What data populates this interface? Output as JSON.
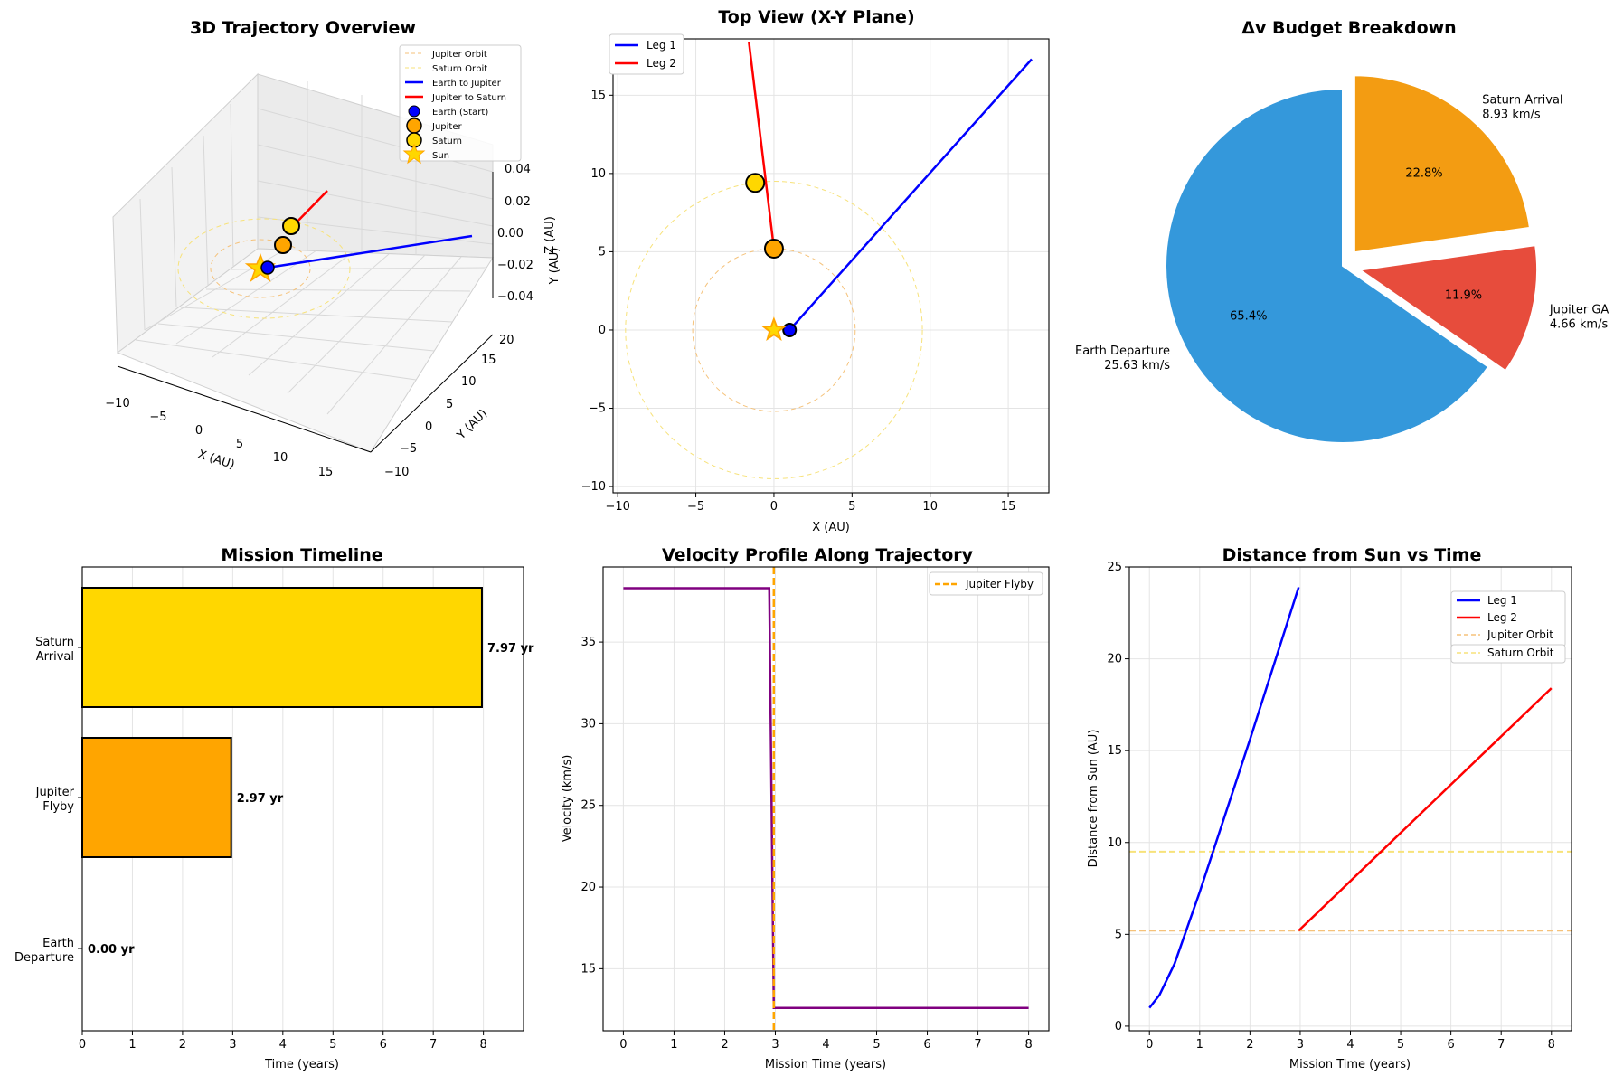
{
  "chart_data": [
    {
      "type": "scatter",
      "title": "3D Trajectory Overview",
      "xlabel": "X (AU)",
      "ylabel": "Y (AU)",
      "zlabel": "Z (AU)",
      "xticks": [
        "−10",
        "−5",
        "0",
        "5",
        "10",
        "15"
      ],
      "yticks": [
        "−10",
        "−5",
        "0",
        "5",
        "10",
        "15",
        "20"
      ],
      "zticks": [
        "−0.04",
        "−0.02",
        "0.00",
        "0.02",
        "0.04"
      ],
      "legend": [
        "Jupiter Orbit",
        "Saturn Orbit",
        "Earth to Jupiter",
        "Jupiter to Saturn",
        "Earth (Start)",
        "Jupiter",
        "Saturn",
        "Sun"
      ],
      "colors": {
        "jupiter_orbit": "#f5c27a",
        "saturn_orbit": "#f7e27a",
        "leg1": "#0000ff",
        "leg2": "#ff0000",
        "earth": "#0000ff",
        "jupiter": "#ffa500",
        "saturn": "#ffd700",
        "sun": "#ffd700"
      }
    },
    {
      "type": "line",
      "title": "Top View (X-Y Plane)",
      "xlabel": "X (AU)",
      "ylabel": "Y (AU)",
      "xlim": [
        -10.3,
        17.6
      ],
      "ylim": [
        -10.4,
        18.6
      ],
      "xticks": [
        -10,
        -5,
        0,
        5,
        10,
        15
      ],
      "yticks": [
        -10,
        -5,
        0,
        5,
        10,
        15
      ],
      "tick_labels_x": [
        "−10",
        "−5",
        "0",
        "5",
        "10",
        "15"
      ],
      "tick_labels_y": [
        "−10",
        "−5",
        "0",
        "5",
        "10",
        "15"
      ],
      "series": [
        {
          "name": "Leg 1",
          "color": "#0000ff",
          "points": [
            [
              1.0,
              0.0
            ],
            [
              16.5,
              17.3
            ]
          ]
        },
        {
          "name": "Leg 2",
          "color": "#ff0000",
          "points": [
            [
              0.0,
              5.2
            ],
            [
              -1.6,
              18.4
            ]
          ]
        }
      ],
      "markers": [
        {
          "name": "Earth",
          "x": 1.0,
          "y": 0.0,
          "color": "#0000ff"
        },
        {
          "name": "Jupiter",
          "x": 0.0,
          "y": 5.2,
          "color": "#ffa500"
        },
        {
          "name": "Saturn",
          "x": -1.2,
          "y": 9.4,
          "color": "#ffd700"
        },
        {
          "name": "Sun",
          "x": 0.0,
          "y": 0.0,
          "color": "#ffd700"
        }
      ],
      "orbits": [
        {
          "name": "Jupiter Orbit",
          "r": 5.2
        },
        {
          "name": "Saturn Orbit",
          "r": 9.5
        }
      ]
    },
    {
      "type": "pie",
      "title": "Δv Budget Breakdown",
      "slices": [
        {
          "label": "Earth Departure",
          "value_label": "25.63 km/s",
          "value": 25.63,
          "percent": "65.4%",
          "color": "#3498db"
        },
        {
          "label": "Jupiter GA",
          "value_label": "4.66 km/s",
          "value": 4.66,
          "percent": "11.9%",
          "color": "#e74c3c"
        },
        {
          "label": "Saturn Arrival",
          "value_label": "8.93 km/s",
          "value": 8.93,
          "percent": "22.8%",
          "color": "#f39c12"
        }
      ]
    },
    {
      "type": "bar",
      "title": "Mission Timeline",
      "xlabel": "Time (years)",
      "xlim": [
        0,
        8.8
      ],
      "xticks": [
        0,
        1,
        2,
        3,
        4,
        5,
        6,
        7,
        8
      ],
      "categories": [
        {
          "line1": "Saturn",
          "line2": "Arrival"
        },
        {
          "line1": "Jupiter",
          "line2": "Flyby"
        },
        {
          "line1": "Earth",
          "line2": "Departure"
        }
      ],
      "values": [
        7.97,
        2.97,
        0.0
      ],
      "value_labels": [
        "7.97 yr",
        "2.97 yr",
        "0.00 yr"
      ],
      "colors": [
        "#ffd700",
        "#ffa500",
        "#1f77b4"
      ]
    },
    {
      "type": "line",
      "title": "Velocity Profile Along Trajectory",
      "xlabel": "Mission Time (years)",
      "ylabel": "Velocity (km/s)",
      "xlim": [
        -0.4,
        8.4
      ],
      "ylim": [
        11.2,
        39.6
      ],
      "xticks": [
        0,
        1,
        2,
        3,
        4,
        5,
        6,
        7,
        8
      ],
      "yticks": [
        15,
        20,
        25,
        30,
        35
      ],
      "series": [
        {
          "name": "Velocity",
          "color": "#800080",
          "points": [
            [
              0,
              38.3
            ],
            [
              2.88,
              38.3
            ],
            [
              2.97,
              12.6
            ],
            [
              8.0,
              12.6
            ]
          ]
        }
      ],
      "vline": {
        "x": 2.97,
        "label": "Jupiter Flyby",
        "color": "#ffa500"
      }
    },
    {
      "type": "line",
      "title": "Distance from Sun vs Time",
      "xlabel": "Mission Time (years)",
      "ylabel": "Distance from Sun (AU)",
      "xlim": [
        -0.4,
        8.4
      ],
      "ylim": [
        -0.25,
        25
      ],
      "xticks": [
        0,
        1,
        2,
        3,
        4,
        5,
        6,
        7,
        8
      ],
      "yticks": [
        0,
        5,
        10,
        15,
        20,
        25
      ],
      "series": [
        {
          "name": "Leg 1",
          "color": "#0000ff",
          "points": [
            [
              0,
              1.0
            ],
            [
              0.2,
              1.7
            ],
            [
              0.5,
              3.4
            ],
            [
              1.0,
              7.3
            ],
            [
              2.0,
              15.6
            ],
            [
              2.97,
              23.9
            ]
          ]
        },
        {
          "name": "Leg 2",
          "color": "#ff0000",
          "points": [
            [
              2.97,
              5.2
            ],
            [
              8.0,
              18.4
            ]
          ]
        }
      ],
      "hlines": [
        {
          "name": "Jupiter Orbit",
          "y": 5.2,
          "color": "#f5c27a"
        },
        {
          "name": "Saturn Orbit",
          "y": 9.5,
          "color": "#f7e27a"
        }
      ]
    }
  ]
}
